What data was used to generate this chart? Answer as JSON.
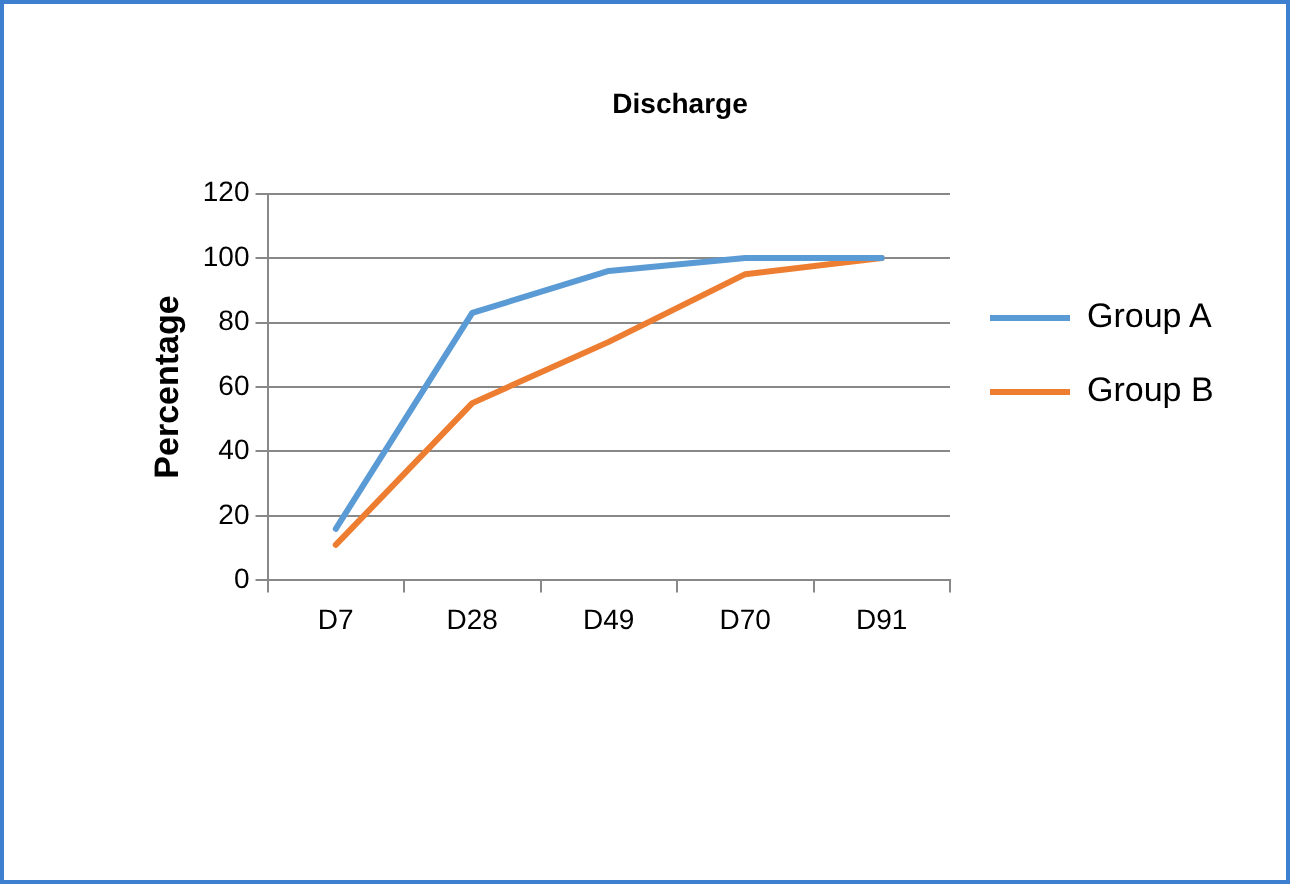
{
  "chart_data": {
    "type": "line",
    "title": "Discharge",
    "ylabel": "Percentage",
    "categories": [
      "D7",
      "D28",
      "D49",
      "D70",
      "D91"
    ],
    "series": [
      {
        "name": "Group A",
        "color": "#5b9bd5",
        "values": [
          16,
          83,
          96,
          100,
          100
        ]
      },
      {
        "name": "Group B",
        "color": "#ed7d31",
        "values": [
          11,
          55,
          74,
          95,
          100
        ]
      }
    ],
    "ylim": [
      0,
      120
    ],
    "yticks": [
      0,
      20,
      40,
      60,
      80,
      100,
      120
    ],
    "grid": "y",
    "legend": "right",
    "marker": "none",
    "line_style": "solid"
  }
}
